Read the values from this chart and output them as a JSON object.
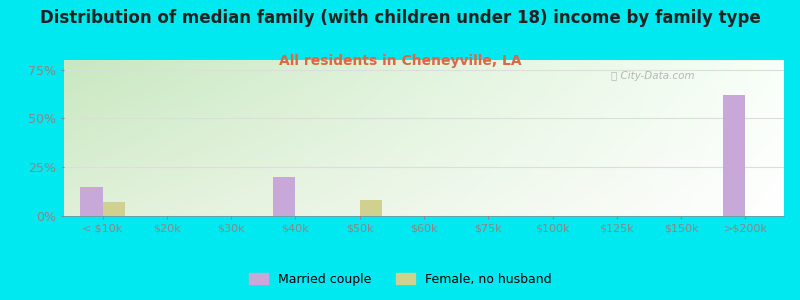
{
  "title": "Distribution of median family (with children under 18) income by family type",
  "subtitle": "All residents in Cheneyville, LA",
  "categories": [
    "< $10k",
    "$20k",
    "$30k",
    "$40k",
    "$50k",
    "$60k",
    "$75k",
    "$100k",
    "$125k",
    "$150k",
    ">$200k"
  ],
  "married_couple": [
    15,
    0,
    0,
    20,
    0,
    0,
    0,
    0,
    0,
    0,
    62
  ],
  "female_no_husband": [
    7,
    0,
    0,
    0,
    8,
    0,
    0,
    0,
    0,
    0,
    0
  ],
  "married_color": "#c8a8d8",
  "female_color": "#d0d090",
  "bar_width": 0.35,
  "ylim": [
    0,
    80
  ],
  "yticks": [
    0,
    25,
    50,
    75
  ],
  "ytick_labels": [
    "0%",
    "25%",
    "50%",
    "75%"
  ],
  "bg_outer": "#00e8f0",
  "bg_grad_top_left": "#c8e8c0",
  "bg_grad_bottom_right": "#f8fff8",
  "title_fontsize": 12,
  "subtitle_fontsize": 10,
  "watermark": "ⓘ City-Data.com",
  "tick_color": "#888888",
  "grid_color": "#dddddd"
}
